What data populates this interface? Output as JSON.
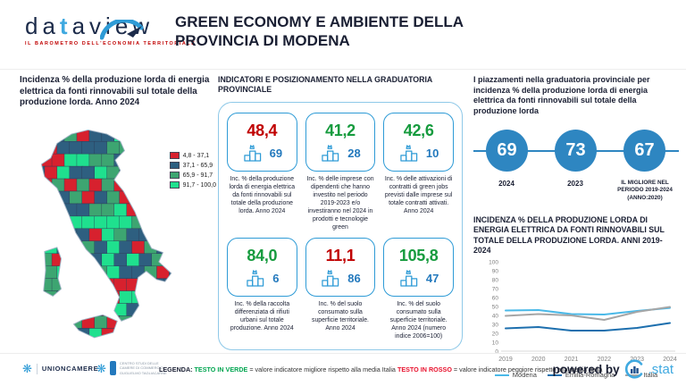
{
  "header": {
    "brand": "dataview",
    "tagline": "IL BAROMETRO DELL'ECONOMIA TERRITORIALE",
    "title": "GREEN ECONOMY E AMBIENTE DELLA PROVINCIA DI MODENA"
  },
  "map_panel": {
    "title": "Incidenza % della produzione lorda di energia elettrica da fonti rinnovabili sul totale della produzione lorda. Anno 2024",
    "legend": [
      {
        "label": "4,8 - 37,1",
        "color": "#d7212e"
      },
      {
        "label": "37,1 - 65,9",
        "color": "#2e5f80"
      },
      {
        "label": "65,9 - 91,7",
        "color": "#3da571"
      },
      {
        "label": "91,7 - 100,0",
        "color": "#1fe08e"
      }
    ]
  },
  "indicators_panel": {
    "title": "INDICATORI E POSIZIONAMENTO NELLA GRADUATORIA PROVINCIALE",
    "cards": [
      {
        "value": "48,4",
        "status": "bad",
        "rank": "69",
        "caption": "Inc. % della produzione lorda di energia elettrica da fonti rinnovabili sul totale della produzione lorda. Anno 2024"
      },
      {
        "value": "41,2",
        "status": "good",
        "rank": "28",
        "caption": "Inc. % delle imprese con dipendenti che hanno investito nel periodo 2019-2023 e/o investiranno nel 2024 in prodotti e tecnologie green"
      },
      {
        "value": "42,6",
        "status": "good",
        "rank": "10",
        "caption": "Inc. % delle attivazioni di contratti di green jobs previsti dalle imprese sul totale contratti attivati. Anno 2024"
      },
      {
        "value": "84,0",
        "status": "good",
        "rank": "6",
        "caption": "Inc. % della raccolta differenziata di rifiuti urbani sul totale produzione. Anno 2024"
      },
      {
        "value": "11,1",
        "status": "bad",
        "rank": "86",
        "caption": "Inc. % del suolo consumato sulla superficie territoriale. Anno 2024"
      },
      {
        "value": "105,8",
        "status": "good",
        "rank": "47",
        "caption": "Inc. % del suolo consumato sulla superficie territoriale. Anno 2024 (numero indice 2006=100)"
      }
    ]
  },
  "ranking_panel": {
    "title": "I piazzamenti nella graduatoria provinciale per incidenza % della produzione lorda di energia elettrica da fonti rinnovabili sul totale della produzione lorda",
    "circles": [
      {
        "value": "69",
        "label": "2024"
      },
      {
        "value": "73",
        "label": "2023"
      },
      {
        "value": "67",
        "label": "IL MIGLIORE NEL PERIODO 2019-2024 (ANNO:2020)"
      }
    ]
  },
  "chart_data": {
    "type": "line",
    "title": "INCIDENZA % DELLA PRODUZIONE LORDA DI ENERGIA ELETTRICA DA FONTI RINNOVABILI SUL TOTALE DELLA PRODUZIONE LORDA. ANNI 2019-2024",
    "x": [
      "2019",
      "2020",
      "2021",
      "2022",
      "2023",
      "2024"
    ],
    "series": [
      {
        "name": "Modena",
        "color": "#4ab9e8",
        "values": [
          45.5,
          46.0,
          41.5,
          41.0,
          45.0,
          48.4
        ]
      },
      {
        "name": "Emilia-Romagna",
        "color": "#1d6fae",
        "values": [
          25.5,
          27.0,
          23.0,
          23.0,
          26.0,
          31.5
        ]
      },
      {
        "name": "Italia",
        "color": "#a6a6a6",
        "values": [
          39.5,
          41.5,
          40.0,
          35.0,
          44.0,
          49.5
        ]
      }
    ],
    "ylim": [
      0,
      100
    ],
    "yticks": [
      0,
      10,
      20,
      30,
      40,
      50,
      60,
      70,
      80,
      90,
      100
    ],
    "grid": false,
    "legend_position": "bottom"
  },
  "footer": {
    "unioncamere": "UNIONCAMERE",
    "tagliacarne": "CENTRO STUDI DELLE CAMERE DI COMMERCIO GUGLIELMO TAGLIACARNE",
    "legend_label": "LEGENDA:",
    "green_term": "TESTO IN VERDE",
    "green_def": "= valore indicatore migliore rispetto alla media Italia",
    "red_term": "TESTO IN ROSSO",
    "red_def": "= valore indicatore peggiore rispetto alla media Italia",
    "powered_by": "powered by",
    "stat_brand": ".stat"
  },
  "colors": {
    "accent_blue": "#2e9bd6",
    "circle_blue": "#2e86c1",
    "rank_blue": "#2379bd",
    "good_green": "#169b3e",
    "bad_red": "#c00000"
  }
}
